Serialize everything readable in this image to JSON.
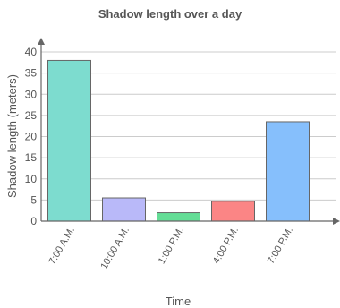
{
  "chart_data": {
    "type": "bar",
    "title": "Shadow length over a day",
    "xlabel": "Time",
    "ylabel": "Shadow length (meters)",
    "categories": [
      "7:00 A.M.",
      "10:00 A.M.",
      "1:00 P.M.",
      "4:00 P.M.",
      "7:00 P.M."
    ],
    "values": [
      38,
      5.5,
      2,
      4.7,
      23.5
    ],
    "colors": [
      "#7ddccf",
      "#b9b9f9",
      "#64dd96",
      "#fb8585",
      "#86bffc"
    ],
    "ylim": [
      0,
      40
    ],
    "yticks": [
      0,
      5,
      10,
      15,
      20,
      25,
      30,
      35,
      40
    ],
    "grid": true
  }
}
